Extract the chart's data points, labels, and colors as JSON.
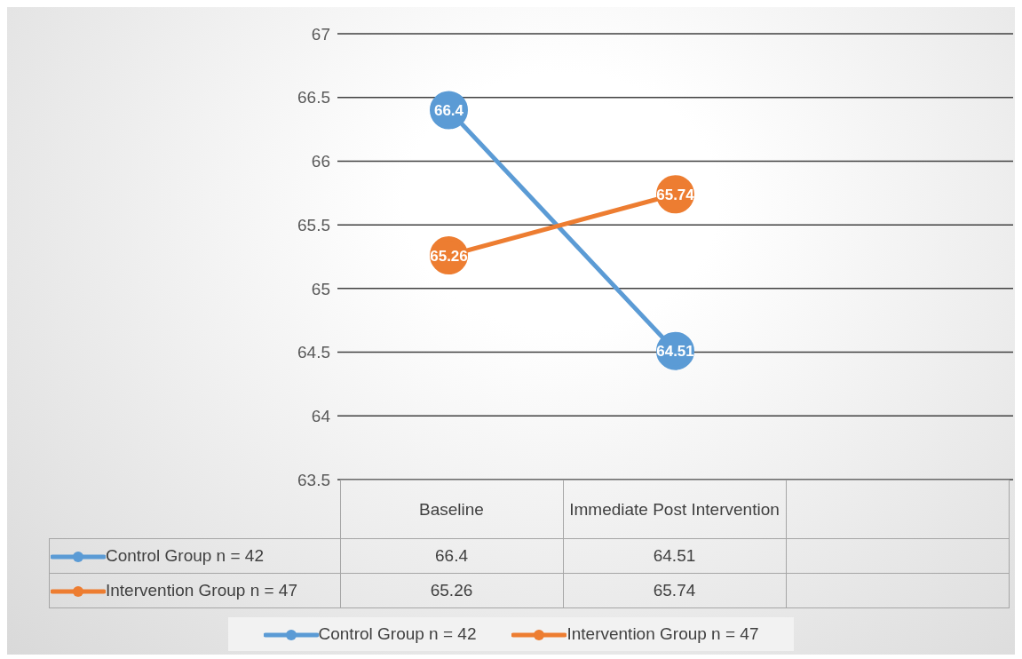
{
  "chart_data": {
    "type": "line",
    "categories": [
      "Baseline",
      "Immediate Post Intervention",
      null
    ],
    "series": [
      {
        "name": "Control Group n = 42",
        "color": "#5b9bd5",
        "values": [
          66.4,
          64.51,
          null
        ],
        "value_labels": [
          "66.4",
          "64.51",
          null
        ]
      },
      {
        "name": "Intervention Group n = 47",
        "color": "#ed7d31",
        "values": [
          65.26,
          65.74,
          null
        ],
        "value_labels": [
          "65.26",
          "65.74",
          null
        ]
      }
    ],
    "ylim": [
      63.5,
      67
    ],
    "yticks": [
      63.5,
      64,
      64.5,
      65,
      65.5,
      66,
      66.5,
      67
    ],
    "grid": "y",
    "legend": "bottom",
    "marker": "circle",
    "line_style": "solid",
    "annotations": [
      "66.4",
      "64.51",
      "65.26",
      "65.74"
    ]
  }
}
